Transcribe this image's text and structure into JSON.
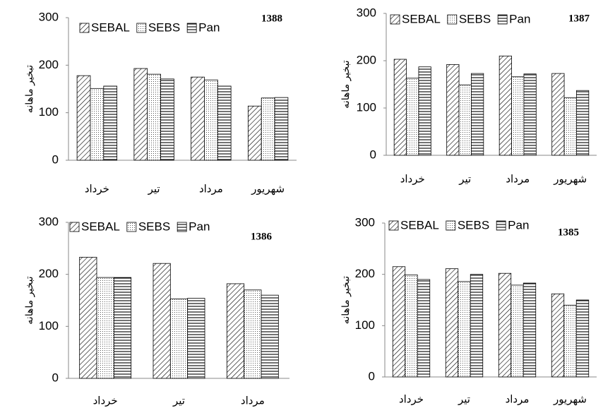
{
  "chart_data": [
    {
      "type": "bar",
      "title": "1388",
      "y_label": "تبخیر ماهانه",
      "categories": [
        "خرداد",
        "تیر",
        "مرداد",
        "شهریور"
      ],
      "series": [
        {
          "name": "SEBAL",
          "color": "#000000",
          "pattern": "diagonal",
          "values": [
            178,
            193,
            175,
            114
          ]
        },
        {
          "name": "SEBS",
          "color": "#000000",
          "pattern": "dots",
          "values": [
            151,
            181,
            169,
            131
          ]
        },
        {
          "name": "Pan",
          "color": "#000000",
          "pattern": "horizontal",
          "values": [
            156,
            171,
            156,
            132
          ]
        }
      ],
      "ylim": [
        0,
        300
      ],
      "yticks": [
        0,
        100,
        200,
        300
      ],
      "grid": false,
      "legend": "top"
    },
    {
      "type": "bar",
      "title": "1387",
      "y_label": "تبخیر ماهانه",
      "categories": [
        "خرداد",
        "تیر",
        "مرداد",
        "شهریور"
      ],
      "series": [
        {
          "name": "SEBAL",
          "color": "#000000",
          "pattern": "diagonal",
          "values": [
            203,
            192,
            210,
            173
          ]
        },
        {
          "name": "SEBS",
          "color": "#000000",
          "pattern": "dots",
          "values": [
            163,
            149,
            166,
            122
          ]
        },
        {
          "name": "Pan",
          "color": "#000000",
          "pattern": "horizontal",
          "values": [
            187,
            173,
            172,
            137
          ]
        }
      ],
      "ylim": [
        0,
        300
      ],
      "yticks": [
        0,
        100,
        200,
        300
      ],
      "grid": false,
      "legend": "top"
    },
    {
      "type": "bar",
      "title": "1386",
      "y_label": "تبخیر ماهانه",
      "categories": [
        "خرداد",
        "تیر",
        "مرداد"
      ],
      "series": [
        {
          "name": "SEBAL",
          "color": "#000000",
          "pattern": "diagonal",
          "values": [
            233,
            221,
            182
          ]
        },
        {
          "name": "SEBS",
          "color": "#000000",
          "pattern": "dots",
          "values": [
            194,
            153,
            170
          ]
        },
        {
          "name": "Pan",
          "color": "#000000",
          "pattern": "horizontal",
          "values": [
            194,
            154,
            160
          ]
        }
      ],
      "ylim": [
        0,
        300
      ],
      "yticks": [
        0,
        100,
        200,
        300
      ],
      "grid": false,
      "legend": "top"
    },
    {
      "type": "bar",
      "title": "1385",
      "y_label": "تبخیر ماهانه",
      "categories": [
        "خرداد",
        "تیر",
        "مرداد",
        "شهریور"
      ],
      "series": [
        {
          "name": "SEBAL",
          "color": "#000000",
          "pattern": "diagonal",
          "values": [
            215,
            211,
            202,
            162
          ]
        },
        {
          "name": "SEBS",
          "color": "#000000",
          "pattern": "dots",
          "values": [
            199,
            186,
            179,
            140
          ]
        },
        {
          "name": "Pan",
          "color": "#000000",
          "pattern": "horizontal",
          "values": [
            190,
            200,
            183,
            150
          ]
        }
      ],
      "ylim": [
        0,
        300
      ],
      "yticks": [
        0,
        100,
        200,
        300
      ],
      "grid": false,
      "legend": "top"
    }
  ]
}
